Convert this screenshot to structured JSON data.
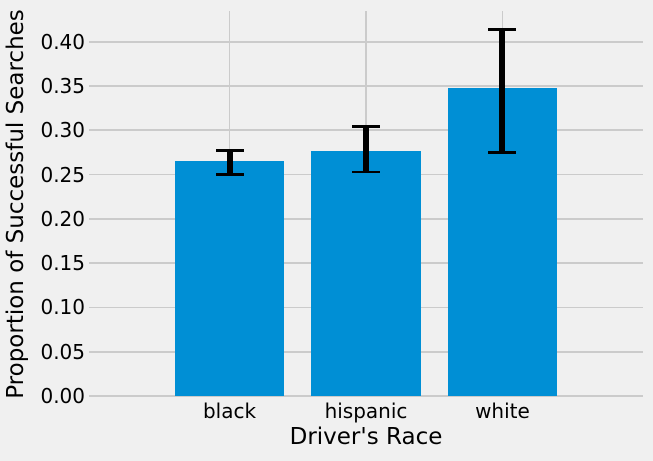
{
  "chart_data": {
    "type": "bar",
    "title": "",
    "xlabel": "Driver's Race",
    "ylabel": "Proportion of Successful Searches",
    "categories": [
      "black",
      "hispanic",
      "white"
    ],
    "values": [
      0.265,
      0.277,
      0.348
    ],
    "error_low": [
      0.25,
      0.253,
      0.275
    ],
    "error_high": [
      0.277,
      0.304,
      0.414
    ],
    "ytick_values": [
      0.0,
      0.05,
      0.1,
      0.15,
      0.2,
      0.25,
      0.3,
      0.35,
      0.4
    ],
    "ytick_labels": [
      "0.00",
      "0.05",
      "0.10",
      "0.15",
      "0.20",
      "0.25",
      "0.30",
      "0.35",
      "0.40"
    ],
    "ylim": [
      0,
      0.4347
    ],
    "grid": true,
    "legend": false,
    "style": "fivethirtyeight",
    "colors": {
      "bar": "#008fd5",
      "background": "#f0f0f0",
      "grid": "#cbcbcb",
      "error_bar": "#000000",
      "text": "#000000"
    }
  }
}
